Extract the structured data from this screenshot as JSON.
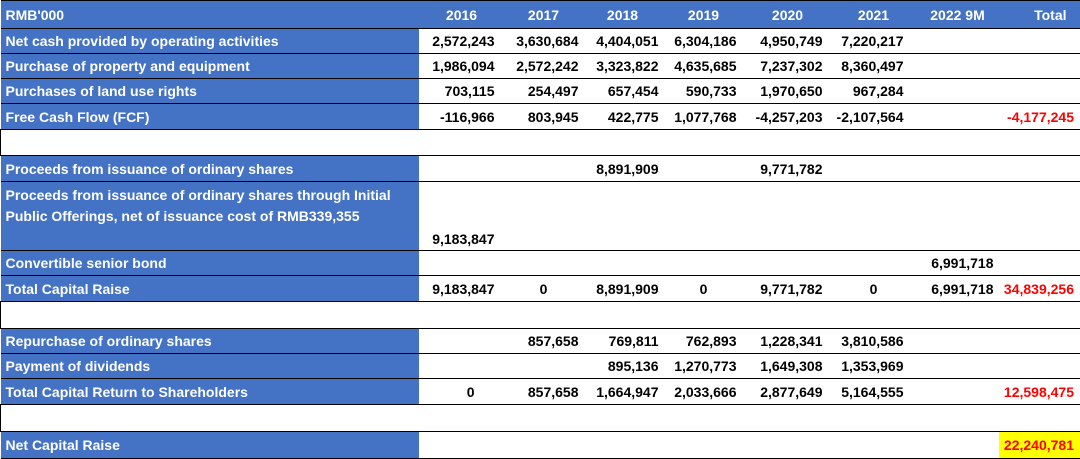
{
  "header": {
    "unit_label": "RMB'000",
    "years": [
      "2016",
      "2017",
      "2018",
      "2019",
      "2020",
      "2021",
      "2022 9M",
      "Total"
    ]
  },
  "operating_section": {
    "net_cash_operating": {
      "label": "Net cash provided by operating activities",
      "values": [
        "2,572,243",
        "3,630,684",
        "4,404,051",
        "6,304,186",
        "4,950,749",
        "7,220,217",
        "",
        ""
      ]
    },
    "purchase_ppe": {
      "label": "Purchase of property and equipment",
      "values": [
        "1,986,094",
        "2,572,242",
        "3,323,822",
        "4,635,685",
        "7,237,302",
        "8,360,497",
        "",
        ""
      ]
    },
    "purchase_land": {
      "label": "Purchases of land use rights",
      "values": [
        "703,115",
        "254,497",
        "657,454",
        "590,733",
        "1,970,650",
        "967,284",
        "",
        ""
      ]
    },
    "fcf": {
      "label": "Free Cash Flow (FCF)",
      "values": [
        "-116,966",
        "803,945",
        "422,775",
        "1,077,768",
        "-4,257,203",
        "-2,107,564",
        "",
        "-4,177,245"
      ]
    }
  },
  "capital_raise_section": {
    "ordinary_shares": {
      "label": "Proceeds from issuance of ordinary shares",
      "values": [
        "",
        "",
        "8,891,909",
        "",
        "9,771,782",
        "",
        "",
        ""
      ]
    },
    "ipo": {
      "label": "Proceeds from issuance of ordinary shares through Initial Public Offerings, net of issuance cost of RMB339,355",
      "values": [
        "9,183,847",
        "",
        "",
        "",
        "",
        "",
        "",
        ""
      ]
    },
    "convertible": {
      "label": "Convertible senior bond",
      "values": [
        "",
        "",
        "",
        "",
        "",
        "",
        "6,991,718",
        ""
      ]
    },
    "total": {
      "label": "Total Capital Raise",
      "values": [
        "9,183,847",
        "0",
        "8,891,909",
        "0",
        "9,771,782",
        "0",
        "6,991,718",
        "34,839,256"
      ]
    }
  },
  "capital_return_section": {
    "repurchase": {
      "label": "Repurchase of ordinary shares",
      "values": [
        "",
        "857,658",
        "769,811",
        "762,893",
        "1,228,341",
        "3,810,586",
        "",
        ""
      ]
    },
    "dividends": {
      "label": "Payment of dividends",
      "values": [
        "",
        "",
        "895,136",
        "1,270,773",
        "1,649,308",
        "1,353,969",
        "",
        ""
      ]
    },
    "total": {
      "label": "Total Capital Return to Shareholders",
      "values": [
        "0",
        "857,658",
        "1,664,947",
        "2,033,666",
        "2,877,649",
        "5,164,555",
        "",
        "12,598,475"
      ]
    }
  },
  "net_capital_raise": {
    "label": "Net Capital Raise",
    "total": "22,240,781"
  },
  "colors": {
    "header_blue": "#4472c4",
    "negative_red": "#ff0000",
    "highlight_yellow": "#ffff00"
  }
}
